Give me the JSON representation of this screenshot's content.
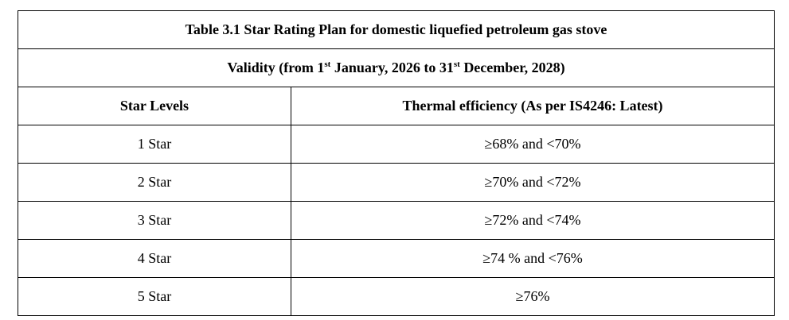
{
  "table": {
    "title": "Table 3.1 Star Rating Plan for domestic liquefied petroleum gas stove",
    "validity": {
      "prefix": "Validity (from 1",
      "sup1": "st",
      "middle": " January, 2026 to 31",
      "sup2": "st",
      "suffix": " December, 2028)"
    },
    "headers": [
      "Star Levels",
      "Thermal efficiency  (As per IS4246: Latest)"
    ],
    "rows": [
      {
        "level": "1 Star",
        "efficiency": "≥68% and <70%"
      },
      {
        "level": "2 Star",
        "efficiency": "≥70% and <72%"
      },
      {
        "level": "3 Star",
        "efficiency": "≥72% and <74%"
      },
      {
        "level": "4 Star",
        "efficiency": "≥74 % and <76%"
      },
      {
        "level": "5 Star",
        "efficiency": "≥76%"
      }
    ]
  }
}
